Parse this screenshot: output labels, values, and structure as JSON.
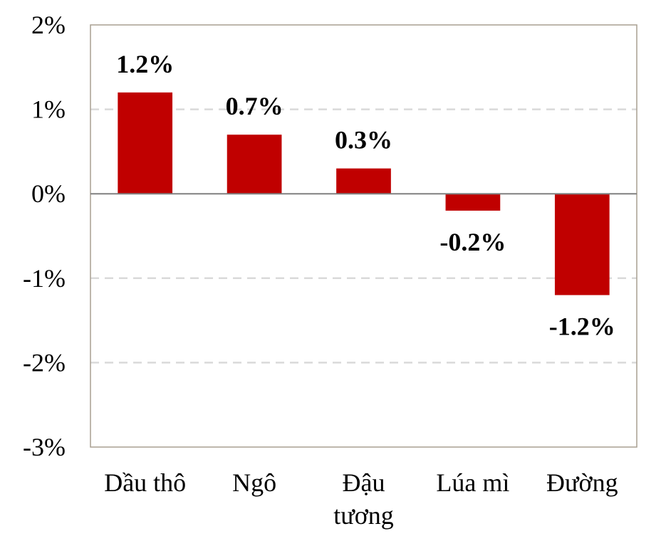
{
  "chart_data": {
    "type": "bar",
    "categories": [
      [
        "Dầu thô"
      ],
      [
        "Ngô"
      ],
      [
        "Đậu",
        "tương"
      ],
      [
        "Lúa mì"
      ],
      [
        "Đường"
      ]
    ],
    "values": [
      1.2,
      0.7,
      0.3,
      -0.2,
      -1.2
    ],
    "data_labels": [
      "1.2%",
      "0.7%",
      "0.3%",
      "-0.2%",
      "-1.2%"
    ],
    "y_ticks": [
      2,
      1,
      0,
      -1,
      -2,
      -3
    ],
    "y_tick_labels": [
      "2%",
      "1%",
      "0%",
      "-1%",
      "-2%",
      "-3%"
    ],
    "ylim": [
      -3,
      2
    ],
    "grid": true,
    "title": "",
    "xlabel": "",
    "ylabel": "",
    "colors": {
      "bar": "#c00000",
      "grid": "#d9d9d9",
      "zero_line": "#808080",
      "frame": "#a89f91"
    }
  }
}
